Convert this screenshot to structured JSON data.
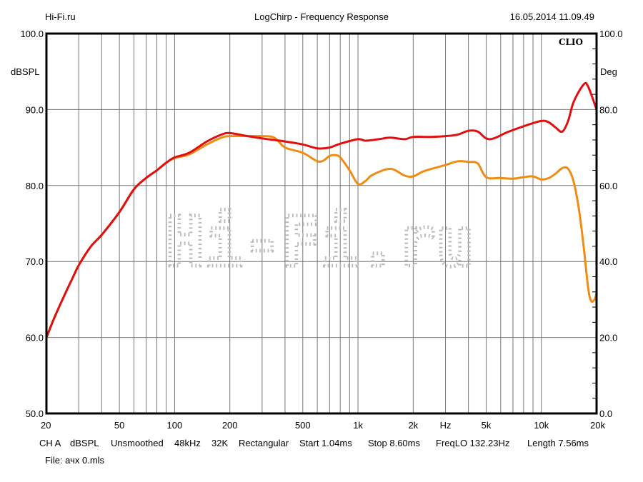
{
  "header": {
    "left": "Hi-Fi.ru",
    "title": "LogChirp - Frequency Response",
    "timestamp": "16.05.2014 11.09.49"
  },
  "brand": "CLIO",
  "watermark": "Hi-Fi.ru",
  "footer": {
    "settings": [
      "CH A",
      "dBSPL",
      "Unsmoothed",
      "48kHz",
      "32K",
      "Rectangular",
      "Start 1.04ms",
      "Stop 8.60ms",
      "FreqLO 132.23Hz",
      "Length 7.56ms"
    ],
    "file": "File: ачх 0.mls"
  },
  "chart_data": {
    "type": "line",
    "title": "LogChirp - Frequency Response",
    "xlabel": "Hz",
    "ylabel": "dBSPL",
    "y2label": "Deg",
    "xscale": "log",
    "xlim": [
      20,
      20000
    ],
    "ylim": [
      50,
      100
    ],
    "y2lim": [
      0,
      100
    ],
    "grid": true,
    "x_ticks": [
      20,
      50,
      100,
      200,
      500,
      1000,
      2000,
      5000,
      10000,
      20000
    ],
    "x_tick_labels": [
      "20",
      "50",
      "100",
      "200",
      "500",
      "1k",
      "2k",
      "5k",
      "10k",
      "20k"
    ],
    "x_unit_label_at": 3000,
    "y_tick_labels": [
      "50.0",
      "60.0",
      "70.0",
      "80.0",
      "90.0",
      "100.0"
    ],
    "y2_tick_labels": [
      "0.0",
      "20.0",
      "40.0",
      "60.0",
      "80.0",
      "100.0"
    ],
    "series": [
      {
        "name": "red",
        "color": "#e01010",
        "x": [
          20,
          22,
          25,
          28,
          30,
          35,
          40,
          50,
          60,
          70,
          80,
          90,
          100,
          120,
          150,
          180,
          200,
          250,
          300,
          400,
          500,
          600,
          700,
          800,
          1000,
          1100,
          1300,
          1500,
          1800,
          2000,
          2500,
          3000,
          3500,
          4000,
          4500,
          5000,
          5500,
          6500,
          8000,
          10000,
          11000,
          12000,
          13000,
          14000,
          15000,
          17000,
          18000,
          20000
        ],
        "y": [
          60,
          62.5,
          65.5,
          68,
          69.5,
          72,
          73.5,
          76.5,
          79.5,
          81,
          82,
          83,
          83.7,
          84.3,
          85.8,
          86.7,
          86.9,
          86.5,
          86.2,
          85.8,
          85.4,
          84.9,
          85,
          85.5,
          86.1,
          85.9,
          86.1,
          86.3,
          86.1,
          86.4,
          86.4,
          86.5,
          86.7,
          87.2,
          87.1,
          86.2,
          86.2,
          87,
          87.8,
          88.5,
          88.3,
          87.6,
          87.1,
          88.5,
          91,
          93.3,
          93,
          90
        ]
      },
      {
        "name": "orange",
        "color": "#f08c14",
        "x": [
          20,
          22,
          25,
          28,
          30,
          35,
          40,
          50,
          60,
          70,
          80,
          90,
          100,
          120,
          150,
          180,
          200,
          250,
          300,
          350,
          400,
          500,
          600,
          650,
          700,
          750,
          800,
          900,
          1000,
          1100,
          1200,
          1500,
          1800,
          2000,
          2300,
          3000,
          3500,
          4000,
          4500,
          5000,
          6000,
          7000,
          8000,
          9000,
          10000,
          11000,
          12000,
          13000,
          14000,
          15000,
          16000,
          17000,
          18000,
          18700,
          19500,
          20000
        ],
        "y": [
          60,
          62.5,
          65.5,
          68,
          69.5,
          72,
          73.5,
          76.5,
          79.5,
          81,
          82,
          83,
          83.6,
          84.1,
          85.4,
          86.3,
          86.5,
          86.5,
          86.5,
          86.3,
          85,
          84.3,
          83.2,
          83.3,
          83.9,
          84,
          83.7,
          82,
          80.2,
          80.6,
          81.4,
          82.2,
          81.3,
          81.2,
          81.9,
          82.7,
          83.2,
          83.1,
          82.9,
          81.1,
          81,
          80.9,
          81.1,
          81.2,
          80.8,
          81,
          81.6,
          82.3,
          82.2,
          80.5,
          77,
          72,
          66.5,
          64.8,
          65,
          65.8
        ]
      }
    ]
  }
}
